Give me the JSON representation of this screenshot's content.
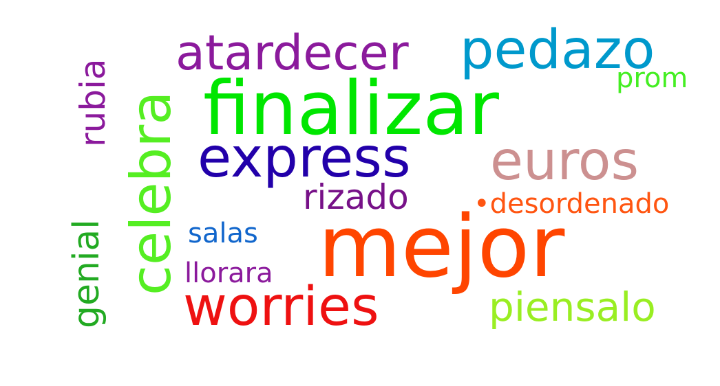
{
  "word_cloud": {
    "background_color": "#ffffff",
    "words": [
      {
        "id": "mejor",
        "text": "mejor",
        "color": "#ff4500",
        "orientation": "horizontal"
      },
      {
        "id": "finalizar",
        "text": "finalizar",
        "color": "#00e600",
        "orientation": "horizontal"
      },
      {
        "id": "celebra",
        "text": "celebra",
        "color": "#55ee22",
        "orientation": "vertical"
      },
      {
        "id": "express",
        "text": "express",
        "color": "#2200aa",
        "orientation": "horizontal"
      },
      {
        "id": "worries",
        "text": "worries",
        "color": "#ee1111",
        "orientation": "horizontal"
      },
      {
        "id": "pedazo",
        "text": "pedazo",
        "color": "#0099cc",
        "orientation": "horizontal"
      },
      {
        "id": "euros",
        "text": "euros",
        "color": "#cc9090",
        "orientation": "horizontal"
      },
      {
        "id": "atardecer",
        "text": "atardecer",
        "color": "#8b1a9c",
        "orientation": "horizontal"
      },
      {
        "id": "piensalo",
        "text": "piensalo",
        "color": "#99ee22",
        "orientation": "horizontal"
      },
      {
        "id": "genial",
        "text": "genial",
        "color": "#22aa22",
        "orientation": "vertical"
      },
      {
        "id": "rubia",
        "text": "rubia",
        "color": "#8b1a9c",
        "orientation": "vertical"
      },
      {
        "id": "rizado",
        "text": "rizado",
        "color": "#771188",
        "orientation": "horizontal"
      },
      {
        "id": "desordenado",
        "text": "•desordenado",
        "color": "#ff5511",
        "orientation": "horizontal"
      },
      {
        "id": "salas",
        "text": "salas",
        "color": "#1166cc",
        "orientation": "horizontal"
      },
      {
        "id": "llorara",
        "text": "llorara",
        "color": "#8b1a9c",
        "orientation": "horizontal"
      },
      {
        "id": "prom",
        "text": "prom",
        "color": "#44ee22",
        "orientation": "horizontal"
      }
    ]
  }
}
